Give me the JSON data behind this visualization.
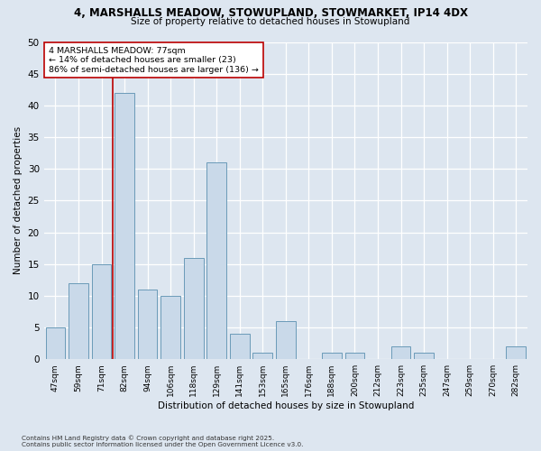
{
  "title1": "4, MARSHALLS MEADOW, STOWUPLAND, STOWMARKET, IP14 4DX",
  "title2": "Size of property relative to detached houses in Stowupland",
  "xlabel": "Distribution of detached houses by size in Stowupland",
  "ylabel": "Number of detached properties",
  "categories": [
    "47sqm",
    "59sqm",
    "71sqm",
    "82sqm",
    "94sqm",
    "106sqm",
    "118sqm",
    "129sqm",
    "141sqm",
    "153sqm",
    "165sqm",
    "176sqm",
    "188sqm",
    "200sqm",
    "212sqm",
    "223sqm",
    "235sqm",
    "247sqm",
    "259sqm",
    "270sqm",
    "282sqm"
  ],
  "values": [
    5,
    12,
    15,
    42,
    11,
    10,
    16,
    31,
    4,
    1,
    6,
    0,
    1,
    1,
    0,
    2,
    1,
    0,
    0,
    0,
    2
  ],
  "bar_color": "#c9d9e9",
  "bar_edge_color": "#6a9ab8",
  "vline_color": "#bb0000",
  "annotation_text": "4 MARSHALLS MEADOW: 77sqm\n← 14% of detached houses are smaller (23)\n86% of semi-detached houses are larger (136) →",
  "annotation_box_color": "#ffffff",
  "annotation_box_edge": "#bb0000",
  "ylim": [
    0,
    50
  ],
  "yticks": [
    0,
    5,
    10,
    15,
    20,
    25,
    30,
    35,
    40,
    45,
    50
  ],
  "bg_color": "#dde6f0",
  "grid_color": "#ffffff",
  "footer1": "Contains HM Land Registry data © Crown copyright and database right 2025.",
  "footer2": "Contains public sector information licensed under the Open Government Licence v3.0."
}
